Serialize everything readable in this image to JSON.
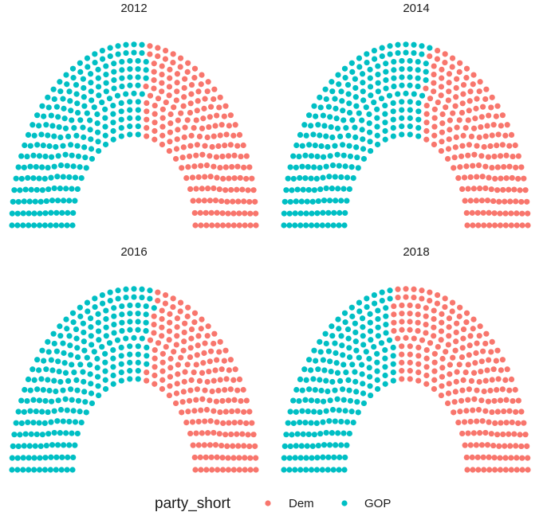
{
  "chart_data": {
    "type": "scatter",
    "description_kind": "parliament",
    "seat_total": 435,
    "rows": 12,
    "legend": {
      "title": "party_short",
      "placement": "bottom",
      "items": [
        {
          "label": "Dem",
          "color": "#F8766D"
        },
        {
          "label": "GOP",
          "color": "#00BFC4"
        }
      ]
    },
    "panels": [
      {
        "title": "2012",
        "series": [
          {
            "name": "Dem",
            "seats": 201
          },
          {
            "name": "GOP",
            "seats": 234
          }
        ]
      },
      {
        "title": "2014",
        "series": [
          {
            "name": "Dem",
            "seats": 188
          },
          {
            "name": "GOP",
            "seats": 247
          }
        ]
      },
      {
        "title": "2016",
        "series": [
          {
            "name": "Dem",
            "seats": 194
          },
          {
            "name": "GOP",
            "seats": 241
          }
        ]
      },
      {
        "title": "2018",
        "series": [
          {
            "name": "Dem",
            "seats": 235
          },
          {
            "name": "GOP",
            "seats": 200
          }
        ]
      }
    ],
    "grid": false
  }
}
